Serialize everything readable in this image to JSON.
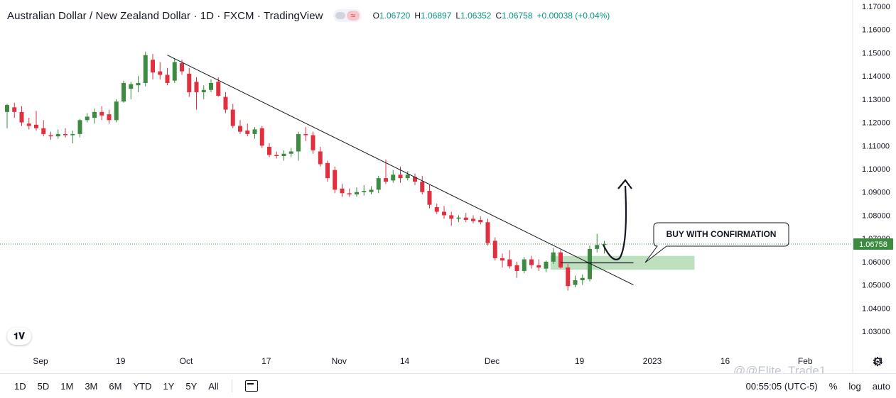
{
  "header": {
    "title": "Australian Dollar / New Zealand Dollar · 1D · FXCM · TradingView",
    "ohlc": [
      {
        "key": "O",
        "value": "1.06720"
      },
      {
        "key": "H",
        "value": "1.06897"
      },
      {
        "key": "L",
        "value": "1.06352"
      },
      {
        "key": "C",
        "value": "1.06758"
      },
      {
        "key": "",
        "value": "+0.00038 (+0.04%)"
      }
    ]
  },
  "annotation": {
    "callout": "BUY WITH CONFIRMATION"
  },
  "price_label": "1.06758",
  "colors": {
    "up": "#3d8b40",
    "down": "#e0303f",
    "zone": "#a9d5a8",
    "accent": "#089981"
  },
  "bottom": {
    "timeframes": [
      "1D",
      "5D",
      "1M",
      "3M",
      "6M",
      "YTD",
      "1Y",
      "5Y",
      "All"
    ],
    "clock": "00:55:05 (UTC-5)",
    "percent": "%",
    "log": "log",
    "auto": "auto"
  },
  "watermark": "@@Elite_Trade1",
  "icons": [
    "tradingview-logo-icon",
    "calendar-range-icon",
    "gear-icon",
    "curved-arrow-icon"
  ],
  "chart_data": {
    "type": "candlestick",
    "ylim": [
      1.025,
      1.1725
    ],
    "y_ticks": [
      "1.17000",
      "1.16000",
      "1.15000",
      "1.14000",
      "1.13000",
      "1.12000",
      "1.11000",
      "1.10000",
      "1.09000",
      "1.08000",
      "1.07000",
      "1.06000",
      "1.05000",
      "1.04000",
      "1.03000"
    ],
    "x_labels": [
      {
        "text": "Sep",
        "i": 4
      },
      {
        "text": "19",
        "i": 15
      },
      {
        "text": "Oct",
        "i": 24
      },
      {
        "text": "17",
        "i": 35
      },
      {
        "text": "Nov",
        "i": 45
      },
      {
        "text": "14",
        "i": 54
      },
      {
        "text": "Dec",
        "i": 66
      },
      {
        "text": "19",
        "i": 78
      },
      {
        "text": "2023",
        "i": 88
      },
      {
        "text": "16",
        "i": 98
      },
      {
        "text": "Feb",
        "i": 109
      },
      {
        "text": "14",
        "i": 119
      }
    ],
    "candles": [
      {
        "o": 1.1245,
        "h": 1.128,
        "l": 1.1175,
        "c": 1.1275
      },
      {
        "o": 1.1265,
        "h": 1.1285,
        "l": 1.122,
        "c": 1.1245
      },
      {
        "o": 1.1245,
        "h": 1.127,
        "l": 1.1185,
        "c": 1.12
      },
      {
        "o": 1.1195,
        "h": 1.122,
        "l": 1.117,
        "c": 1.1185
      },
      {
        "o": 1.119,
        "h": 1.125,
        "l": 1.1165,
        "c": 1.1175
      },
      {
        "o": 1.1175,
        "h": 1.121,
        "l": 1.114,
        "c": 1.115
      },
      {
        "o": 1.1145,
        "h": 1.116,
        "l": 1.1125,
        "c": 1.114
      },
      {
        "o": 1.114,
        "h": 1.117,
        "l": 1.113,
        "c": 1.115
      },
      {
        "o": 1.115,
        "h": 1.1175,
        "l": 1.1135,
        "c": 1.1145
      },
      {
        "o": 1.1145,
        "h": 1.1165,
        "l": 1.111,
        "c": 1.115
      },
      {
        "o": 1.115,
        "h": 1.1215,
        "l": 1.1135,
        "c": 1.121
      },
      {
        "o": 1.121,
        "h": 1.124,
        "l": 1.12,
        "c": 1.1225
      },
      {
        "o": 1.122,
        "h": 1.126,
        "l": 1.1195,
        "c": 1.1245
      },
      {
        "o": 1.1245,
        "h": 1.127,
        "l": 1.121,
        "c": 1.123
      },
      {
        "o": 1.1235,
        "h": 1.1255,
        "l": 1.1195,
        "c": 1.121
      },
      {
        "o": 1.121,
        "h": 1.13,
        "l": 1.12,
        "c": 1.129
      },
      {
        "o": 1.129,
        "h": 1.138,
        "l": 1.1285,
        "c": 1.137
      },
      {
        "o": 1.1345,
        "h": 1.1375,
        "l": 1.13,
        "c": 1.1365
      },
      {
        "o": 1.136,
        "h": 1.14,
        "l": 1.133,
        "c": 1.137
      },
      {
        "o": 1.137,
        "h": 1.1505,
        "l": 1.1355,
        "c": 1.149
      },
      {
        "o": 1.147,
        "h": 1.1495,
        "l": 1.1385,
        "c": 1.1415
      },
      {
        "o": 1.142,
        "h": 1.146,
        "l": 1.1385,
        "c": 1.1405
      },
      {
        "o": 1.1405,
        "h": 1.1435,
        "l": 1.136,
        "c": 1.137
      },
      {
        "o": 1.138,
        "h": 1.1475,
        "l": 1.137,
        "c": 1.146
      },
      {
        "o": 1.1455,
        "h": 1.147,
        "l": 1.1405,
        "c": 1.142
      },
      {
        "o": 1.141,
        "h": 1.1435,
        "l": 1.131,
        "c": 1.133
      },
      {
        "o": 1.1375,
        "h": 1.1395,
        "l": 1.1255,
        "c": 1.133
      },
      {
        "o": 1.133,
        "h": 1.136,
        "l": 1.13,
        "c": 1.134
      },
      {
        "o": 1.134,
        "h": 1.1385,
        "l": 1.133,
        "c": 1.137
      },
      {
        "o": 1.1375,
        "h": 1.1395,
        "l": 1.131,
        "c": 1.1315
      },
      {
        "o": 1.131,
        "h": 1.133,
        "l": 1.124,
        "c": 1.1255
      },
      {
        "o": 1.1255,
        "h": 1.128,
        "l": 1.1175,
        "c": 1.1185
      },
      {
        "o": 1.1185,
        "h": 1.121,
        "l": 1.115,
        "c": 1.116
      },
      {
        "o": 1.1165,
        "h": 1.1195,
        "l": 1.114,
        "c": 1.115
      },
      {
        "o": 1.115,
        "h": 1.118,
        "l": 1.113,
        "c": 1.117
      },
      {
        "o": 1.1175,
        "h": 1.1185,
        "l": 1.109,
        "c": 1.11
      },
      {
        "o": 1.1095,
        "h": 1.111,
        "l": 1.105,
        "c": 1.106
      },
      {
        "o": 1.106,
        "h": 1.1075,
        "l": 1.1045,
        "c": 1.1055
      },
      {
        "o": 1.1055,
        "h": 1.108,
        "l": 1.1035,
        "c": 1.1065
      },
      {
        "o": 1.1065,
        "h": 1.109,
        "l": 1.105,
        "c": 1.1075
      },
      {
        "o": 1.1075,
        "h": 1.116,
        "l": 1.1035,
        "c": 1.115
      },
      {
        "o": 1.115,
        "h": 1.118,
        "l": 1.112,
        "c": 1.1145
      },
      {
        "o": 1.1145,
        "h": 1.116,
        "l": 1.1065,
        "c": 1.108
      },
      {
        "o": 1.1075,
        "h": 1.1095,
        "l": 1.101,
        "c": 1.102
      },
      {
        "o": 1.1025,
        "h": 1.1035,
        "l": 1.0945,
        "c": 1.096
      },
      {
        "o": 1.0995,
        "h": 1.101,
        "l": 1.0895,
        "c": 1.091
      },
      {
        "o": 1.0915,
        "h": 1.0935,
        "l": 1.088,
        "c": 1.0895
      },
      {
        "o": 1.0895,
        "h": 1.0915,
        "l": 1.088,
        "c": 1.089
      },
      {
        "o": 1.089,
        "h": 1.092,
        "l": 1.088,
        "c": 1.09
      },
      {
        "o": 1.09,
        "h": 1.093,
        "l": 1.0885,
        "c": 1.0905
      },
      {
        "o": 1.09,
        "h": 1.0925,
        "l": 1.089,
        "c": 1.091
      },
      {
        "o": 1.091,
        "h": 1.097,
        "l": 1.0895,
        "c": 1.096
      },
      {
        "o": 1.096,
        "h": 1.104,
        "l": 1.0935,
        "c": 1.0945
      },
      {
        "o": 1.095,
        "h": 1.0995,
        "l": 1.094,
        "c": 1.0975
      },
      {
        "o": 1.0975,
        "h": 1.101,
        "l": 1.094,
        "c": 1.096
      },
      {
        "o": 1.096,
        "h": 1.099,
        "l": 1.095,
        "c": 1.0975
      },
      {
        "o": 1.0965,
        "h": 1.098,
        "l": 1.093,
        "c": 1.0945
      },
      {
        "o": 1.0945,
        "h": 1.097,
        "l": 1.089,
        "c": 1.09
      },
      {
        "o": 1.0905,
        "h": 1.093,
        "l": 1.083,
        "c": 1.0845
      },
      {
        "o": 1.0835,
        "h": 1.085,
        "l": 1.0805,
        "c": 1.0815
      },
      {
        "o": 1.0815,
        "h": 1.084,
        "l": 1.0785,
        "c": 1.08
      },
      {
        "o": 1.08,
        "h": 1.0815,
        "l": 1.0755,
        "c": 1.0785
      },
      {
        "o": 1.0785,
        "h": 1.08,
        "l": 1.077,
        "c": 1.079
      },
      {
        "o": 1.079,
        "h": 1.081,
        "l": 1.077,
        "c": 1.078
      },
      {
        "o": 1.0785,
        "h": 1.08,
        "l": 1.0765,
        "c": 1.0775
      },
      {
        "o": 1.078,
        "h": 1.0795,
        "l": 1.076,
        "c": 1.077
      },
      {
        "o": 1.077,
        "h": 1.0785,
        "l": 1.067,
        "c": 1.068
      },
      {
        "o": 1.069,
        "h": 1.0705,
        "l": 1.0605,
        "c": 1.0615
      },
      {
        "o": 1.0615,
        "h": 1.0635,
        "l": 1.0575,
        "c": 1.0605
      },
      {
        "o": 1.061,
        "h": 1.065,
        "l": 1.057,
        "c": 1.058
      },
      {
        "o": 1.0585,
        "h": 1.06,
        "l": 1.053,
        "c": 1.056
      },
      {
        "o": 1.056,
        "h": 1.062,
        "l": 1.055,
        "c": 1.061
      },
      {
        "o": 1.061,
        "h": 1.0625,
        "l": 1.057,
        "c": 1.0585
      },
      {
        "o": 1.0585,
        "h": 1.061,
        "l": 1.056,
        "c": 1.0575
      },
      {
        "o": 1.057,
        "h": 1.0605,
        "l": 1.0555,
        "c": 1.06
      },
      {
        "o": 1.06,
        "h": 1.066,
        "l": 1.059,
        "c": 1.064
      },
      {
        "o": 1.064,
        "h": 1.065,
        "l": 1.057,
        "c": 1.0575
      },
      {
        "o": 1.0575,
        "h": 1.059,
        "l": 1.0475,
        "c": 1.0495
      },
      {
        "o": 1.05,
        "h": 1.054,
        "l": 1.049,
        "c": 1.052
      },
      {
        "o": 1.052,
        "h": 1.0545,
        "l": 1.05,
        "c": 1.053
      },
      {
        "o": 1.0525,
        "h": 1.067,
        "l": 1.0515,
        "c": 1.0655
      },
      {
        "o": 1.0655,
        "h": 1.072,
        "l": 1.064,
        "c": 1.0672
      },
      {
        "o": 1.0672,
        "h": 1.06897,
        "l": 1.06352,
        "c": 1.06758
      }
    ],
    "trendline": {
      "from": {
        "i": 22,
        "price": 1.149
      },
      "to": {
        "i": 86,
        "price": 1.05
      }
    },
    "zone": {
      "from_i": 75,
      "to_i": 94,
      "top": 1.0625,
      "bottom": 1.0565
    },
    "last_price": 1.06758
  }
}
